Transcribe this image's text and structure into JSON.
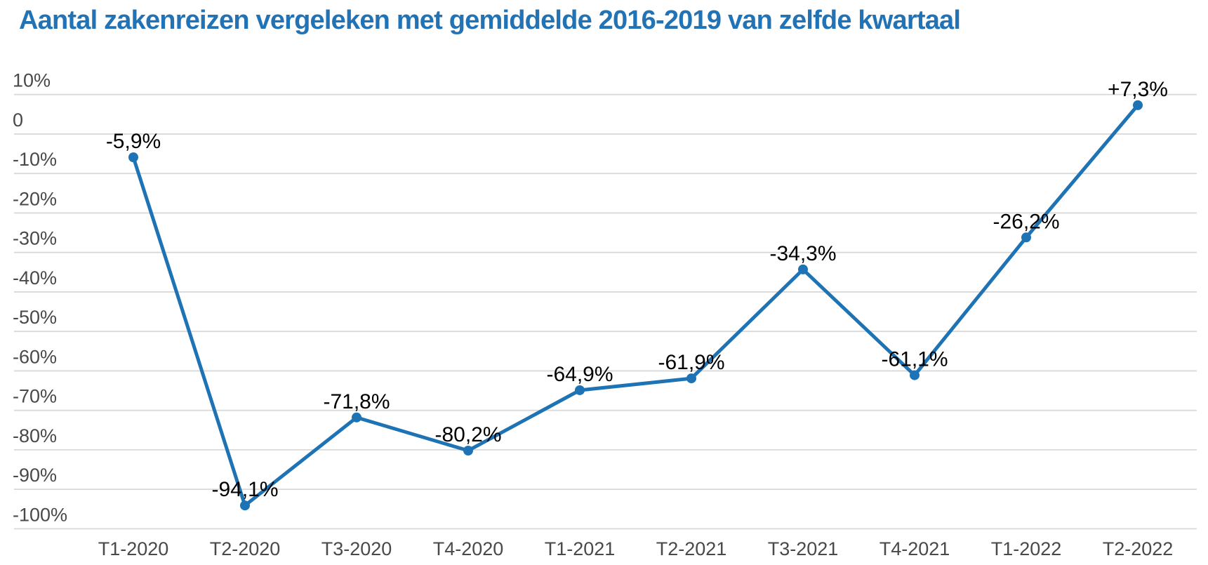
{
  "title": "Aantal zakenreizen vergeleken met gemiddelde 2016-2019 van zelfde kwartaal",
  "chart_data": {
    "type": "line",
    "title": "Aantal zakenreizen vergeleken met gemiddelde 2016-2019 van zelfde kwartaal",
    "categories": [
      "T1-2020",
      "T2-2020",
      "T3-2020",
      "T4-2020",
      "T1-2021",
      "T2-2021",
      "T3-2021",
      "T4-2021",
      "T1-2022",
      "T2-2022"
    ],
    "values": [
      -5.9,
      -94.1,
      -71.8,
      -80.2,
      -64.9,
      -61.9,
      -34.3,
      -61.1,
      -26.2,
      7.3
    ],
    "point_labels": [
      "-5,9%",
      "-94,1%",
      "-71,8%",
      "-80,2%",
      "-64,9%",
      "-61,9%",
      "-34,3%",
      "-61,1%",
      "-26,2%",
      "+7,3%"
    ],
    "y_ticks": [
      {
        "value": 10,
        "label": "10%"
      },
      {
        "value": 0,
        "label": "0"
      },
      {
        "value": -10,
        "label": "-10%"
      },
      {
        "value": -20,
        "label": "-20%"
      },
      {
        "value": -30,
        "label": "-30%"
      },
      {
        "value": -40,
        "label": "-40%"
      },
      {
        "value": -50,
        "label": "-50%"
      },
      {
        "value": -60,
        "label": "-60%"
      },
      {
        "value": -70,
        "label": "-70%"
      },
      {
        "value": -80,
        "label": "-80%"
      },
      {
        "value": -90,
        "label": "-90%"
      },
      {
        "value": -100,
        "label": "-100%"
      }
    ],
    "ylim": [
      -100,
      10
    ],
    "xlabel": "",
    "ylabel": "",
    "grid": true,
    "legend": "none",
    "colors": {
      "line": "#1e73b4",
      "marker": "#1e73b4",
      "title": "#2273b6",
      "axis_text": "#494949",
      "point_label_text": "#000000",
      "grid": "#d9d9d9",
      "background": "#ffffff"
    }
  }
}
